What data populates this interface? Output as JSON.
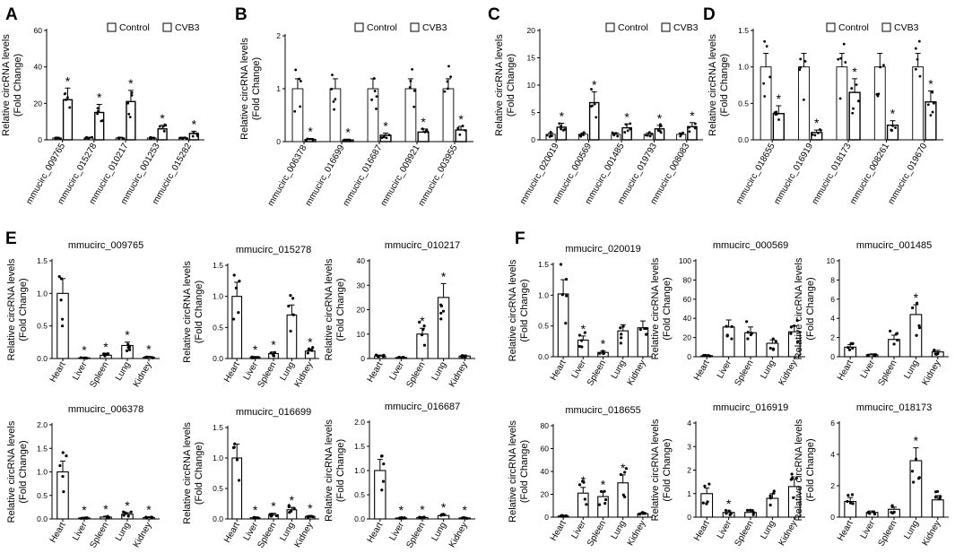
{
  "figure": {
    "colors": {
      "control": "#ffffff",
      "cvb3": "#ffffff",
      "stroke": "#000000",
      "background": "#ffffff"
    },
    "legend_labels": [
      "Control",
      "CVB3"
    ],
    "ylabel_line1": "Relative circRNA levels",
    "ylabel_line2": "(Fold Change)"
  },
  "chart_data": [
    {
      "panel": "A",
      "type": "bar",
      "title": "",
      "categories": [
        "mmucirc_009765",
        "mmucirc_015278",
        "mmucirc_010217",
        "mmucirc_001253",
        "mmucirc_015282"
      ],
      "series": [
        {
          "name": "Control",
          "values": [
            1,
            1,
            1,
            1,
            1
          ]
        },
        {
          "name": "CVB3",
          "values": [
            22,
            15,
            21,
            6,
            3.5
          ]
        }
      ],
      "stars": [
        true,
        true,
        true,
        true,
        true
      ],
      "ylim": [
        0,
        60
      ],
      "yticks": [
        0,
        20,
        40,
        60
      ],
      "ylabel": "Relative circRNA levels (Fold Change)",
      "legend": "top-right"
    },
    {
      "panel": "B",
      "type": "bar",
      "title": "",
      "categories": [
        "mmucirc_006378",
        "mmucirc_016699",
        "mmucirc_016687",
        "mmucirc_009921",
        "mmucirc_003955"
      ],
      "series": [
        {
          "name": "Control",
          "values": [
            1.0,
            1.0,
            1.0,
            1.0,
            1.0
          ]
        },
        {
          "name": "CVB3",
          "values": [
            0.04,
            0.03,
            0.12,
            0.18,
            0.22
          ]
        }
      ],
      "stars": [
        true,
        true,
        true,
        true,
        true
      ],
      "ylim": [
        0,
        2
      ],
      "yticks": [
        0,
        1,
        2
      ],
      "ylabel": "Relative circRNA levels (Fold Change)",
      "legend": "top-right"
    },
    {
      "panel": "C",
      "type": "bar",
      "title": "",
      "categories": [
        "mmucirc_020019",
        "mmucirc_000569",
        "mmucirc_001485",
        "mmucirc_019793",
        "mmucirc_008083"
      ],
      "series": [
        {
          "name": "Control",
          "values": [
            1,
            1,
            1,
            1,
            1
          ]
        },
        {
          "name": "CVB3",
          "values": [
            2.3,
            6.8,
            2.2,
            2.0,
            2.4
          ]
        }
      ],
      "stars": [
        true,
        true,
        true,
        true,
        true
      ],
      "ylim": [
        0,
        20
      ],
      "yticks": [
        0,
        5,
        10,
        15,
        20
      ],
      "ylabel": "Relative circRNA levels (Fold Change)",
      "legend": "top-right"
    },
    {
      "panel": "D",
      "type": "bar",
      "title": "",
      "categories": [
        "mmucirc_018655",
        "mmucirc_016919",
        "mmucirc_018173",
        "mmucirc_008261",
        "mmucirc_019670"
      ],
      "series": [
        {
          "name": "Control",
          "values": [
            1.0,
            1.0,
            1.0,
            1.0,
            1.0
          ]
        },
        {
          "name": "CVB3",
          "values": [
            0.36,
            0.1,
            0.65,
            0.2,
            0.52
          ]
        }
      ],
      "stars": [
        true,
        true,
        true,
        true,
        true
      ],
      "ylim": [
        0,
        1.5
      ],
      "yticks": [
        0,
        0.5,
        1.0,
        1.5
      ],
      "ylabel": "Relative circRNA levels (Fold Change)",
      "legend": "top-right"
    },
    {
      "panel": "E",
      "type": "bar",
      "title": "mmucirc_009765",
      "categories": [
        "Heart",
        "Liver",
        "Spleen",
        "Lung",
        "Kidney"
      ],
      "values": [
        1.0,
        0.01,
        0.05,
        0.2,
        0.02
      ],
      "stars": [
        false,
        true,
        true,
        true,
        true
      ],
      "ylim": [
        0,
        1.5
      ],
      "yticks": [
        0,
        0.5,
        1.0,
        1.5
      ],
      "ylabel": "Relative circRNA levels (Fold Change)"
    },
    {
      "panel": "",
      "type": "bar",
      "title": "mmucirc_015278",
      "categories": [
        "Heart",
        "Liver",
        "Spleen",
        "Lung",
        "Kidney"
      ],
      "values": [
        1.0,
        0.02,
        0.08,
        0.7,
        0.12
      ],
      "stars": [
        false,
        true,
        true,
        false,
        true
      ],
      "ylim": [
        0,
        1.5
      ],
      "yticks": [
        0,
        0.5,
        1.0,
        1.5
      ],
      "ylabel": "Relative circRNA levels (Fold Change)"
    },
    {
      "panel": "",
      "type": "bar",
      "title": "mmucirc_010217",
      "categories": [
        "Heart",
        "Liver",
        "Spleen",
        "Lung",
        "Kidney"
      ],
      "values": [
        1,
        0.4,
        10,
        25,
        1
      ],
      "stars": [
        false,
        false,
        true,
        true,
        false
      ],
      "ylim": [
        0,
        40
      ],
      "yticks": [
        0,
        10,
        20,
        30,
        40
      ],
      "ylabel": "Relative circRNA levels (Fold Change)"
    },
    {
      "panel": "",
      "type": "bar",
      "title": "mmucirc_006378",
      "categories": [
        "Heart",
        "Liver",
        "Spleen",
        "Lung",
        "Kidney"
      ],
      "values": [
        1.0,
        0.02,
        0.04,
        0.1,
        0.03
      ],
      "stars": [
        false,
        true,
        true,
        true,
        true
      ],
      "ylim": [
        0,
        2.0
      ],
      "yticks": [
        0,
        0.5,
        1.0,
        1.5,
        2.0
      ],
      "ylabel": "Relative circRNA levels (Fold Change)"
    },
    {
      "panel": "",
      "type": "bar",
      "title": "mmucirc_016699",
      "categories": [
        "Heart",
        "Liver",
        "Spleen",
        "Lung",
        "Kidney"
      ],
      "values": [
        1.0,
        0.02,
        0.07,
        0.15,
        0.04
      ],
      "stars": [
        false,
        true,
        true,
        true,
        true
      ],
      "ylim": [
        0,
        1.5
      ],
      "yticks": [
        0,
        0.5,
        1.0,
        1.5
      ],
      "ylabel": "Relative circRNA levels (Fold Change)"
    },
    {
      "panel": "",
      "type": "bar",
      "title": "mmucirc_016687",
      "categories": [
        "Heart",
        "Liver",
        "Spleen",
        "Lung",
        "Kidney"
      ],
      "values": [
        1.0,
        0.02,
        0.03,
        0.07,
        0.02
      ],
      "stars": [
        false,
        true,
        true,
        true,
        true
      ],
      "ylim": [
        0,
        2.0
      ],
      "yticks": [
        0,
        0.5,
        1.0,
        1.5,
        2.0
      ],
      "ylabel": "Relative circRNA levels (Fold Change)"
    },
    {
      "panel": "F",
      "type": "bar",
      "title": "mmucirc_020019",
      "categories": [
        "Heart",
        "Liver",
        "Spleen",
        "Lung",
        "Kidney"
      ],
      "values": [
        1.02,
        0.27,
        0.07,
        0.42,
        0.47
      ],
      "stars": [
        false,
        true,
        true,
        false,
        false
      ],
      "ylim": [
        0,
        1.5
      ],
      "yticks": [
        0,
        0.5,
        1.0,
        1.5
      ],
      "ylabel": "Relative circRNA levels (Fold Change)"
    },
    {
      "panel": "",
      "type": "bar",
      "title": "mmucirc_000569",
      "categories": [
        "Heart",
        "Liver",
        "Spleen",
        "Lung",
        "Kidney"
      ],
      "values": [
        1,
        31,
        25,
        14,
        26
      ],
      "stars": [
        false,
        false,
        false,
        false,
        false
      ],
      "ylim": [
        0,
        100
      ],
      "yticks": [
        0,
        20,
        40,
        60,
        80,
        100
      ],
      "ylabel": "Relative circRNA levels (Fold Change)"
    },
    {
      "panel": "",
      "type": "bar",
      "title": "mmucirc_001485",
      "categories": [
        "Heart",
        "Liver",
        "Spleen",
        "Lung",
        "Kidney"
      ],
      "values": [
        1.0,
        0.2,
        1.8,
        4.4,
        0.5
      ],
      "stars": [
        false,
        false,
        false,
        true,
        false
      ],
      "ylim": [
        0,
        10
      ],
      "yticks": [
        0,
        2,
        4,
        6,
        8,
        10
      ],
      "ylabel": "Relative circRNA levels (Fold Change)"
    },
    {
      "panel": "",
      "type": "bar",
      "title": "mmucirc_018655",
      "categories": [
        "Heart",
        "Liver",
        "Spleen",
        "Lung",
        "Kidney"
      ],
      "values": [
        1,
        21,
        18,
        30,
        3
      ],
      "stars": [
        false,
        true,
        true,
        true,
        false
      ],
      "ylim": [
        0,
        80
      ],
      "yticks": [
        0,
        20,
        40,
        60,
        80
      ],
      "ylabel": "Relative circRNA levels (Fold Change)"
    },
    {
      "panel": "",
      "type": "bar",
      "title": "mmucirc_016919",
      "categories": [
        "Heart",
        "Liver",
        "Spleen",
        "Lung",
        "Kidney"
      ],
      "values": [
        1.0,
        0.2,
        0.2,
        0.8,
        1.3
      ],
      "stars": [
        false,
        true,
        false,
        false,
        false
      ],
      "ylim": [
        0,
        4
      ],
      "yticks": [
        0,
        1,
        2,
        3,
        4
      ],
      "ylabel": "Relative circRNA levels (Fold Change)"
    },
    {
      "panel": "",
      "type": "bar",
      "title": "mmucirc_018173",
      "categories": [
        "Heart",
        "Liver",
        "Spleen",
        "Lung",
        "Kidney"
      ],
      "values": [
        1.0,
        0.3,
        0.5,
        3.6,
        1.1
      ],
      "stars": [
        false,
        false,
        false,
        true,
        false
      ],
      "ylim": [
        0,
        6
      ],
      "yticks": [
        0,
        2,
        4,
        6
      ],
      "ylabel": "Relative circRNA levels (Fold Change)"
    }
  ]
}
